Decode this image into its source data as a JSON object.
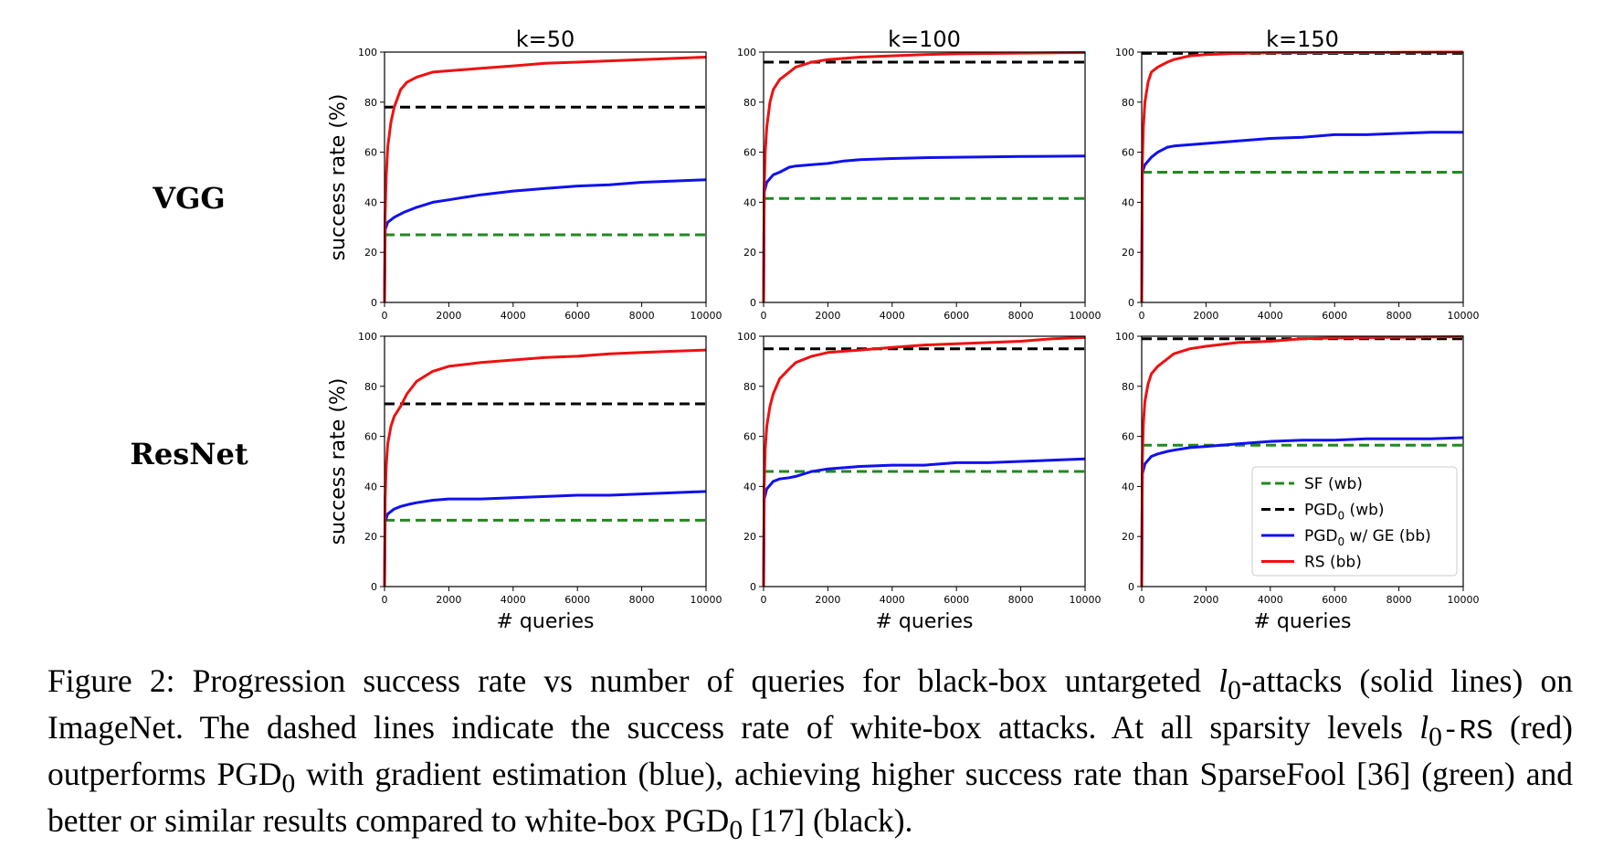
{
  "figure": {
    "row_labels": [
      "VGG",
      "ResNet"
    ],
    "caption": {
      "label": "Figure 2:",
      "part1": " Progression success rate vs number of queries for black-box untargeted ",
      "l0_symbol": "l",
      "l0_sub": "0",
      "part2": "-attacks (solid lines) on ImageNet. The dashed lines indicate the success rate of white-box attacks. At all sparsity levels ",
      "rs_mono": "-RS",
      "part3": " (red) outperforms PGD",
      "part4": " with gradient estimation (blue), achieving higher success rate than SparseFool [36] (green) and better or similar results compared to white-box PGD",
      "part5": " [17] (black)."
    }
  },
  "colors": {
    "SF": "#1f8a1f",
    "PGD0": "#000000",
    "PGD0_GE": "#1010ee",
    "RS": "#ee1111"
  },
  "legend": {
    "position": "lower-right",
    "entries": [
      {
        "key": "SF",
        "label": "SF (wb)",
        "dashed": true
      },
      {
        "key": "PGD0",
        "label_main": "PGD",
        "label_sub": "0",
        "label_rest": " (wb)",
        "dashed": true
      },
      {
        "key": "PGD0_GE",
        "label_main": "PGD",
        "label_sub": "0",
        "label_rest": " w/ GE (bb)",
        "dashed": false
      },
      {
        "key": "RS",
        "label": "RS (bb)",
        "dashed": false
      }
    ]
  },
  "chart_data": [
    {
      "type": "line",
      "title": "k=50",
      "row": "VGG",
      "xlabel": "",
      "ylabel": "success rate (%)",
      "xlim": [
        0,
        10000
      ],
      "ylim": [
        0,
        100
      ],
      "xticks": [
        0,
        2000,
        4000,
        6000,
        8000,
        10000
      ],
      "yticks": [
        0,
        20,
        40,
        60,
        80,
        100
      ],
      "series": [
        {
          "key": "SF",
          "style": "dashed",
          "x": [
            0,
            10000
          ],
          "y": [
            27,
            27
          ]
        },
        {
          "key": "PGD0",
          "style": "dashed",
          "x": [
            0,
            10000
          ],
          "y": [
            78,
            78
          ]
        },
        {
          "key": "PGD0_GE",
          "style": "solid",
          "x": [
            0,
            20,
            100,
            300,
            600,
            1000,
            1500,
            2000,
            2500,
            3000,
            4000,
            5000,
            6000,
            7000,
            8000,
            9000,
            10000
          ],
          "y": [
            0,
            29,
            32,
            34,
            36,
            38,
            40,
            41,
            42,
            43,
            44.5,
            45.5,
            46.5,
            47,
            48,
            48.5,
            49
          ]
        },
        {
          "key": "RS",
          "style": "solid",
          "x": [
            0,
            20,
            50,
            100,
            200,
            300,
            500,
            700,
            1000,
            1500,
            2000,
            3000,
            4000,
            5000,
            6000,
            7000,
            8000,
            9000,
            10000
          ],
          "y": [
            0,
            35,
            50,
            62,
            72,
            78,
            85,
            88,
            90,
            92,
            92.5,
            93.5,
            94.5,
            95.5,
            96,
            96.5,
            97,
            97.5,
            98
          ]
        }
      ]
    },
    {
      "type": "line",
      "title": "k=100",
      "row": "VGG",
      "xlabel": "",
      "ylabel": "",
      "xlim": [
        0,
        10000
      ],
      "ylim": [
        0,
        100
      ],
      "xticks": [
        0,
        2000,
        4000,
        6000,
        8000,
        10000
      ],
      "yticks": [
        0,
        20,
        40,
        60,
        80,
        100
      ],
      "series": [
        {
          "key": "SF",
          "style": "dashed",
          "x": [
            0,
            10000
          ],
          "y": [
            41.5,
            41.5
          ]
        },
        {
          "key": "PGD0",
          "style": "dashed",
          "x": [
            0,
            10000
          ],
          "y": [
            96,
            96
          ]
        },
        {
          "key": "PGD0_GE",
          "style": "solid",
          "x": [
            0,
            20,
            100,
            300,
            500,
            800,
            1000,
            1500,
            2000,
            2500,
            3000,
            4000,
            5000,
            6000,
            8000,
            10000
          ],
          "y": [
            0,
            44,
            48,
            51,
            52,
            54,
            54.5,
            55,
            55.5,
            56.5,
            57,
            57.5,
            57.8,
            58,
            58.3,
            58.5
          ]
        },
        {
          "key": "RS",
          "style": "solid",
          "x": [
            0,
            20,
            50,
            100,
            200,
            300,
            500,
            800,
            1000,
            1500,
            2000,
            3000,
            4000,
            5000,
            6000,
            8000,
            10000
          ],
          "y": [
            0,
            45,
            60,
            70,
            80,
            85,
            89,
            92,
            94,
            96,
            97,
            98,
            98.5,
            99,
            99.3,
            99.6,
            99.8
          ]
        }
      ]
    },
    {
      "type": "line",
      "title": "k=150",
      "row": "VGG",
      "xlabel": "",
      "ylabel": "",
      "xlim": [
        0,
        10000
      ],
      "ylim": [
        0,
        100
      ],
      "xticks": [
        0,
        2000,
        4000,
        6000,
        8000,
        10000
      ],
      "yticks": [
        0,
        20,
        40,
        60,
        80,
        100
      ],
      "series": [
        {
          "key": "SF",
          "style": "dashed",
          "x": [
            0,
            10000
          ],
          "y": [
            52,
            52
          ]
        },
        {
          "key": "PGD0",
          "style": "dashed",
          "x": [
            0,
            10000
          ],
          "y": [
            99.5,
            99.5
          ]
        },
        {
          "key": "PGD0_GE",
          "style": "solid",
          "x": [
            0,
            20,
            100,
            300,
            500,
            800,
            1000,
            1500,
            2000,
            3000,
            4000,
            5000,
            6000,
            7000,
            8000,
            9000,
            10000
          ],
          "y": [
            0,
            52,
            55,
            58,
            60,
            62,
            62.5,
            63,
            63.5,
            64.5,
            65.5,
            66,
            67,
            67,
            67.5,
            68,
            68
          ]
        },
        {
          "key": "RS",
          "style": "solid",
          "x": [
            0,
            20,
            50,
            100,
            200,
            300,
            500,
            800,
            1000,
            1500,
            2000,
            3000,
            4000,
            6000,
            8000,
            10000
          ],
          "y": [
            0,
            55,
            70,
            80,
            88,
            92,
            94,
            96,
            97,
            98.5,
            99,
            99.5,
            99.7,
            99.8,
            99.9,
            100
          ]
        }
      ]
    },
    {
      "type": "line",
      "title": "",
      "row": "ResNet",
      "xlabel": "# queries",
      "ylabel": "success rate (%)",
      "xlim": [
        0,
        10000
      ],
      "ylim": [
        0,
        100
      ],
      "xticks": [
        0,
        2000,
        4000,
        6000,
        8000,
        10000
      ],
      "yticks": [
        0,
        20,
        40,
        60,
        80,
        100
      ],
      "series": [
        {
          "key": "SF",
          "style": "dashed",
          "x": [
            0,
            10000
          ],
          "y": [
            26.5,
            26.5
          ]
        },
        {
          "key": "PGD0",
          "style": "dashed",
          "x": [
            0,
            10000
          ],
          "y": [
            73,
            73
          ]
        },
        {
          "key": "PGD0_GE",
          "style": "solid",
          "x": [
            0,
            20,
            100,
            300,
            500,
            800,
            1000,
            1500,
            2000,
            3000,
            4000,
            5000,
            6000,
            7000,
            8000,
            9000,
            10000
          ],
          "y": [
            0,
            26,
            29,
            31,
            32,
            33,
            33.5,
            34.5,
            35,
            35,
            35.5,
            36,
            36.5,
            36.5,
            37,
            37.5,
            38
          ]
        },
        {
          "key": "RS",
          "style": "solid",
          "x": [
            0,
            20,
            50,
            100,
            200,
            300,
            500,
            700,
            1000,
            1500,
            2000,
            3000,
            4000,
            5000,
            6000,
            7000,
            8000,
            9000,
            10000
          ],
          "y": [
            0,
            35,
            48,
            57,
            64,
            68,
            72,
            77,
            82,
            86,
            88,
            89.5,
            90.5,
            91.5,
            92,
            93,
            93.5,
            94,
            94.5
          ]
        }
      ]
    },
    {
      "type": "line",
      "title": "",
      "row": "ResNet",
      "xlabel": "# queries",
      "ylabel": "",
      "xlim": [
        0,
        10000
      ],
      "ylim": [
        0,
        100
      ],
      "xticks": [
        0,
        2000,
        4000,
        6000,
        8000,
        10000
      ],
      "yticks": [
        0,
        20,
        40,
        60,
        80,
        100
      ],
      "series": [
        {
          "key": "SF",
          "style": "dashed",
          "x": [
            0,
            10000
          ],
          "y": [
            46,
            46
          ]
        },
        {
          "key": "PGD0",
          "style": "dashed",
          "x": [
            0,
            10000
          ],
          "y": [
            95,
            95
          ]
        },
        {
          "key": "PGD0_GE",
          "style": "solid",
          "x": [
            0,
            20,
            100,
            300,
            500,
            800,
            1000,
            1500,
            2000,
            2500,
            3000,
            4000,
            5000,
            6000,
            7000,
            8000,
            9000,
            10000
          ],
          "y": [
            0,
            35,
            39,
            42,
            43,
            43.5,
            44,
            46,
            47,
            47.5,
            48,
            48.5,
            48.5,
            49.5,
            49.5,
            50,
            50.5,
            51
          ]
        },
        {
          "key": "RS",
          "style": "solid",
          "x": [
            0,
            20,
            50,
            100,
            200,
            300,
            500,
            800,
            1000,
            1500,
            2000,
            3000,
            4000,
            5000,
            6000,
            7000,
            8000,
            9000,
            10000
          ],
          "y": [
            0,
            40,
            55,
            64,
            72,
            77,
            83,
            87,
            89.5,
            92,
            93.5,
            94.5,
            95.5,
            96.5,
            97,
            97.5,
            98,
            99,
            99.5
          ]
        }
      ]
    },
    {
      "type": "line",
      "title": "",
      "row": "ResNet",
      "xlabel": "# queries",
      "ylabel": "",
      "xlim": [
        0,
        10000
      ],
      "ylim": [
        0,
        100
      ],
      "xticks": [
        0,
        2000,
        4000,
        6000,
        8000,
        10000
      ],
      "yticks": [
        0,
        20,
        40,
        60,
        80,
        100
      ],
      "series": [
        {
          "key": "SF",
          "style": "dashed",
          "x": [
            0,
            10000
          ],
          "y": [
            56.5,
            56.5
          ]
        },
        {
          "key": "PGD0",
          "style": "dashed",
          "x": [
            0,
            10000
          ],
          "y": [
            99,
            99
          ]
        },
        {
          "key": "PGD0_GE",
          "style": "solid",
          "x": [
            0,
            20,
            100,
            300,
            500,
            800,
            1000,
            1500,
            2000,
            3000,
            4000,
            5000,
            6000,
            7000,
            8000,
            9000,
            10000
          ],
          "y": [
            0,
            45,
            49,
            52,
            53,
            54,
            54.5,
            55.5,
            56,
            57,
            58,
            58.5,
            58.5,
            59,
            59,
            59,
            59.5
          ]
        },
        {
          "key": "RS",
          "style": "solid",
          "x": [
            0,
            20,
            50,
            100,
            200,
            300,
            500,
            800,
            1000,
            1500,
            2000,
            3000,
            4000,
            5000,
            6000,
            8000,
            10000
          ],
          "y": [
            0,
            50,
            65,
            74,
            81,
            85,
            88,
            91,
            93,
            95,
            96,
            97.5,
            98,
            99,
            99.3,
            99.6,
            99.8
          ]
        }
      ]
    }
  ]
}
